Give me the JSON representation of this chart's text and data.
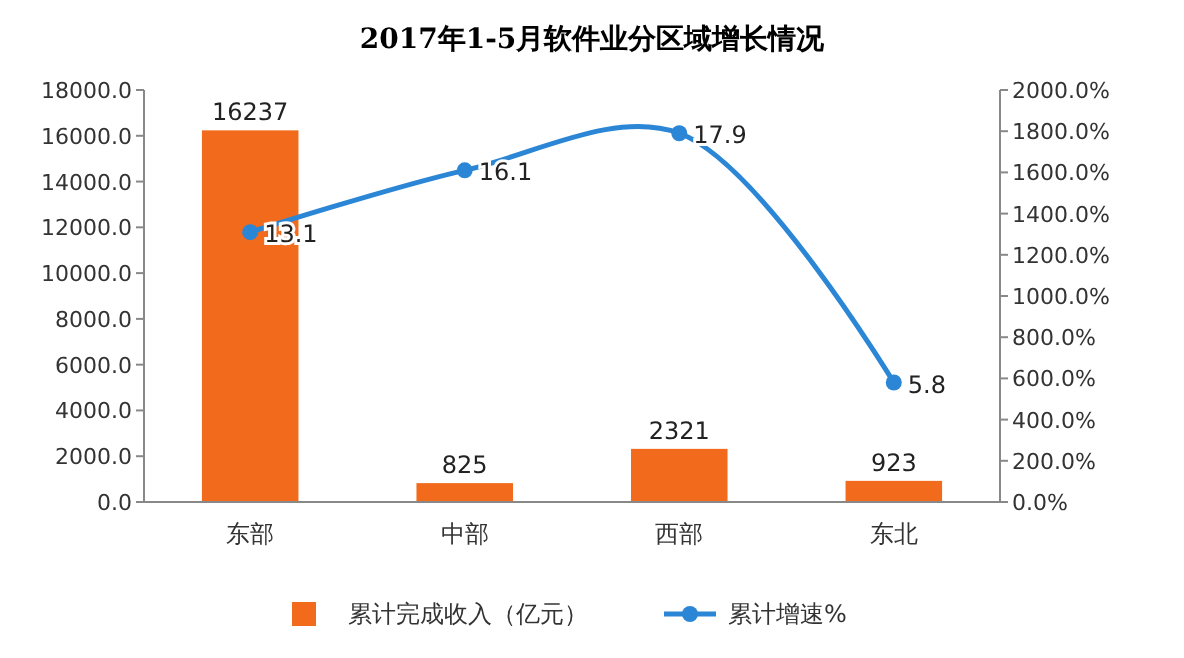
{
  "chart_data": {
    "type": "bar",
    "title": "2017年1-5月软件业分区域增长情况",
    "categories": [
      "东部",
      "中部",
      "西部",
      "东北"
    ],
    "series": [
      {
        "name": "累计完成收入（亿元）",
        "color": "#f26b1d",
        "values": [
          16237,
          825,
          2321,
          923
        ]
      },
      {
        "name": "累计增速%",
        "type": "line",
        "axis": "y2",
        "color": "#2b86d6",
        "values": [
          13.1,
          16.1,
          17.9,
          5.8
        ],
        "marker": "circle"
      }
    ],
    "ylim": [
      0,
      18000
    ],
    "yticks": [
      {
        "value": 0,
        "label": "0.0"
      },
      {
        "value": 2000,
        "label": "2000.0"
      },
      {
        "value": 4000,
        "label": "4000.0"
      },
      {
        "value": 6000,
        "label": "6000.0"
      },
      {
        "value": 8000,
        "label": "8000.0"
      },
      {
        "value": 10000,
        "label": "10000.0"
      },
      {
        "value": 12000,
        "label": "12000.0"
      },
      {
        "value": 14000,
        "label": "14000.0"
      },
      {
        "value": 16000,
        "label": "16000.0"
      },
      {
        "value": 18000,
        "label": "18000.0"
      }
    ],
    "y2lim": [
      0,
      20
    ],
    "y2ticks": [
      {
        "value": 0,
        "label": "0.0%"
      },
      {
        "value": 2,
        "label": "200.0%"
      },
      {
        "value": 4,
        "label": "400.0%"
      },
      {
        "value": 6,
        "label": "600.0%"
      },
      {
        "value": 8,
        "label": "800.0%"
      },
      {
        "value": 10,
        "label": "1000.0%"
      },
      {
        "value": 12,
        "label": "1200.0%"
      },
      {
        "value": 14,
        "label": "1400.0%"
      },
      {
        "value": 16,
        "label": "1600.0%"
      },
      {
        "value": 18,
        "label": "1800.0%"
      },
      {
        "value": 20,
        "label": "2000.0%"
      }
    ],
    "data_labels": true,
    "legend": "bottom",
    "grid": false
  }
}
